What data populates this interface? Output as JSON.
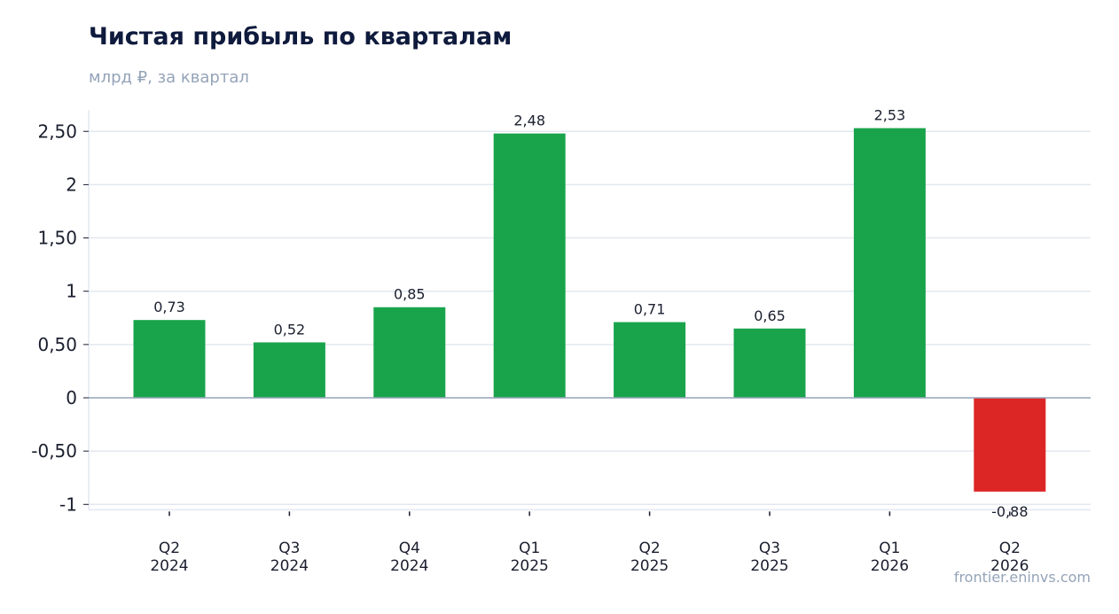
{
  "chart_data": {
    "type": "bar",
    "title": "Чистая прибыль по кварталам",
    "subtitle": "млрд ₽, за квартал",
    "categories": [
      "Q2\n2024",
      "Q3\n2024",
      "Q4\n2024",
      "Q1\n2025",
      "Q2\n2025",
      "Q3\n2025",
      "Q1\n2026",
      "Q2\n2026"
    ],
    "values": [
      0.73,
      0.52,
      0.85,
      2.48,
      0.71,
      0.65,
      2.53,
      -0.88
    ],
    "value_labels": [
      "0,73",
      "0,52",
      "0,85",
      "2,48",
      "0,71",
      "0,65",
      "2,53",
      "-0,88"
    ],
    "yticks": [
      2.5,
      2,
      1.5,
      1,
      0.5,
      0,
      -0.5,
      -1
    ],
    "ytick_labels": [
      "2,50",
      "2",
      "1,50",
      "1",
      "0,50",
      "0",
      "-0,50",
      "-1"
    ],
    "ylim": [
      -1.05,
      2.7
    ],
    "xlabel": "",
    "ylabel": "",
    "grid": true,
    "colors": {
      "positive": "#19a44c",
      "negative": "#dc2626",
      "grid": "#e2e8f0",
      "zero_line": "#94a3b8"
    }
  },
  "source": "frontier.eninvs.com"
}
